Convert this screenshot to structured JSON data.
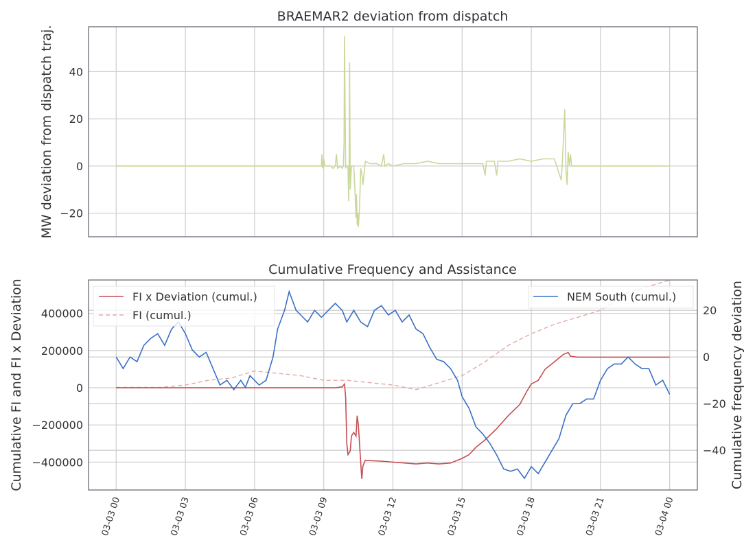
{
  "colors": {
    "deviation": "#cad89a",
    "fi_x_dev": "#c44e52",
    "fi": "#e3a8a6",
    "nem": "#3a70c4"
  },
  "chart_data": [
    {
      "type": "line",
      "title": "BRAEMAR2 deviation from dispatch",
      "xlabel": "",
      "ylabel": "MW deviation from dispatch traj.",
      "x_range": [
        "03-03 00",
        "03-04 00"
      ],
      "xlim_hours": [
        -1.2,
        25.2
      ],
      "ylim": [
        -30,
        59
      ],
      "yticks": [
        -20,
        0,
        20,
        40
      ],
      "ytick_labels": [
        "−20",
        "0",
        "20",
        "40"
      ],
      "grid": true,
      "series": [
        {
          "color_key": "deviation",
          "points": [
            [
              0,
              0
            ],
            [
              8.8,
              0
            ],
            [
              8.9,
              0
            ],
            [
              8.92,
              5
            ],
            [
              8.95,
              -1
            ],
            [
              9.0,
              3
            ],
            [
              9.05,
              0
            ],
            [
              9.3,
              0
            ],
            [
              9.4,
              -1
            ],
            [
              9.5,
              0
            ],
            [
              9.55,
              5
            ],
            [
              9.6,
              -1
            ],
            [
              9.7,
              0
            ],
            [
              9.8,
              -1
            ],
            [
              9.85,
              0
            ],
            [
              9.88,
              10
            ],
            [
              9.9,
              55
            ],
            [
              9.95,
              -1
            ],
            [
              10.0,
              0
            ],
            [
              10.05,
              0
            ],
            [
              10.08,
              -15
            ],
            [
              10.1,
              0
            ],
            [
              10.12,
              44
            ],
            [
              10.15,
              -10
            ],
            [
              10.2,
              0
            ],
            [
              10.3,
              0
            ],
            [
              10.35,
              -10
            ],
            [
              10.4,
              -22
            ],
            [
              10.42,
              -12
            ],
            [
              10.45,
              -25
            ],
            [
              10.48,
              -20
            ],
            [
              10.5,
              -26
            ],
            [
              10.55,
              -18
            ],
            [
              10.6,
              -1
            ],
            [
              10.65,
              -3
            ],
            [
              10.7,
              -8
            ],
            [
              10.75,
              -3
            ],
            [
              10.8,
              2
            ],
            [
              11.0,
              1
            ],
            [
              11.3,
              1
            ],
            [
              11.5,
              0
            ],
            [
              11.6,
              5
            ],
            [
              11.65,
              0
            ],
            [
              11.8,
              1
            ],
            [
              12.0,
              0
            ],
            [
              12.5,
              1
            ],
            [
              13.0,
              1
            ],
            [
              13.5,
              2
            ],
            [
              14.0,
              1
            ],
            [
              14.5,
              1
            ],
            [
              15.0,
              1
            ],
            [
              15.5,
              1
            ],
            [
              15.9,
              1
            ],
            [
              16.0,
              -4
            ],
            [
              16.05,
              2
            ],
            [
              16.4,
              2
            ],
            [
              16.5,
              -4
            ],
            [
              16.55,
              2
            ],
            [
              17.0,
              2
            ],
            [
              17.5,
              3
            ],
            [
              18.0,
              2
            ],
            [
              18.5,
              3
            ],
            [
              19.0,
              3
            ],
            [
              19.2,
              -3
            ],
            [
              19.3,
              -6
            ],
            [
              19.35,
              2
            ],
            [
              19.45,
              24
            ],
            [
              19.5,
              -1
            ],
            [
              19.55,
              -8
            ],
            [
              19.6,
              6
            ],
            [
              19.65,
              0
            ],
            [
              19.7,
              5
            ],
            [
              19.75,
              0
            ],
            [
              20.0,
              0
            ],
            [
              24.0,
              0
            ]
          ]
        }
      ]
    },
    {
      "type": "line",
      "title": "Cumulative Frequency and Assistance",
      "xlabel": "",
      "ylabel": "Cumulative FI and FI x Deviation",
      "ylabel_right": "Cumulative frequency deviation",
      "x_range": [
        "03-03 00",
        "03-04 00"
      ],
      "xlim_hours": [
        -1.2,
        25.2
      ],
      "ylim": [
        -550000,
        580000
      ],
      "ylim_right": [
        -57,
        33
      ],
      "yticks": [
        -400000,
        -200000,
        0,
        200000,
        400000
      ],
      "ytick_labels": [
        "−400000",
        "−200000",
        "0",
        "200000",
        "400000"
      ],
      "yticks_right": [
        -40,
        -20,
        0,
        20
      ],
      "ytick_labels_right": [
        "−40",
        "−20",
        "0",
        "20"
      ],
      "xticks": [
        0,
        3,
        6,
        9,
        12,
        15,
        18,
        21,
        24
      ],
      "xtick_labels": [
        "03-03 00",
        "03-03 03",
        "03-03 06",
        "03-03 09",
        "03-03 12",
        "03-03 15",
        "03-03 18",
        "03-03 21",
        "03-04 00"
      ],
      "grid": true,
      "legend_left_placement": "upper-left",
      "legend_right_placement": "upper-right",
      "series": [
        {
          "name": "FI x Deviation (cumul.)",
          "axis": "left",
          "color_key": "fi_x_dev",
          "dash": "solid",
          "points": [
            [
              0,
              0
            ],
            [
              2,
              0
            ],
            [
              4,
              0
            ],
            [
              6,
              0
            ],
            [
              8,
              0
            ],
            [
              9.0,
              0
            ],
            [
              9.5,
              0
            ],
            [
              9.8,
              5000
            ],
            [
              9.9,
              20000
            ],
            [
              9.95,
              -50000
            ],
            [
              10.0,
              -300000
            ],
            [
              10.05,
              -360000
            ],
            [
              10.1,
              -350000
            ],
            [
              10.15,
              -340000
            ],
            [
              10.2,
              -260000
            ],
            [
              10.3,
              -240000
            ],
            [
              10.4,
              -260000
            ],
            [
              10.45,
              -150000
            ],
            [
              10.5,
              -200000
            ],
            [
              10.6,
              -400000
            ],
            [
              10.65,
              -490000
            ],
            [
              10.7,
              -420000
            ],
            [
              10.8,
              -390000
            ],
            [
              11.0,
              -392000
            ],
            [
              11.5,
              -395000
            ],
            [
              12.0,
              -400000
            ],
            [
              12.5,
              -405000
            ],
            [
              13.0,
              -410000
            ],
            [
              13.5,
              -405000
            ],
            [
              14.0,
              -410000
            ],
            [
              14.5,
              -405000
            ],
            [
              15.0,
              -380000
            ],
            [
              15.3,
              -360000
            ],
            [
              15.6,
              -320000
            ],
            [
              16.0,
              -280000
            ],
            [
              16.5,
              -220000
            ],
            [
              17.0,
              -150000
            ],
            [
              17.5,
              -90000
            ],
            [
              17.8,
              -20000
            ],
            [
              18.0,
              20000
            ],
            [
              18.3,
              40000
            ],
            [
              18.6,
              100000
            ],
            [
              19.0,
              140000
            ],
            [
              19.2,
              160000
            ],
            [
              19.4,
              180000
            ],
            [
              19.6,
              190000
            ],
            [
              19.7,
              170000
            ],
            [
              20.0,
              165000
            ],
            [
              21.0,
              165000
            ],
            [
              22.0,
              165000
            ],
            [
              23.0,
              165000
            ],
            [
              24.0,
              165000
            ]
          ]
        },
        {
          "name": "FI (cumul.)",
          "axis": "right",
          "color_key": "fi",
          "dash": "dashed",
          "points": [
            [
              0,
              -13
            ],
            [
              1,
              -13
            ],
            [
              2,
              -13
            ],
            [
              3,
              -12
            ],
            [
              4,
              -10
            ],
            [
              5,
              -9
            ],
            [
              6,
              -6
            ],
            [
              7,
              -7
            ],
            [
              8,
              -8
            ],
            [
              9,
              -10
            ],
            [
              10,
              -10
            ],
            [
              11,
              -11
            ],
            [
              12,
              -12
            ],
            [
              13,
              -14
            ],
            [
              14,
              -11
            ],
            [
              15,
              -8
            ],
            [
              16,
              -2
            ],
            [
              17,
              5
            ],
            [
              18,
              10
            ],
            [
              19,
              14
            ],
            [
              20,
              17
            ],
            [
              21,
              20
            ],
            [
              21.5,
              23
            ],
            [
              22,
              27
            ],
            [
              23,
              30
            ],
            [
              24,
              33
            ]
          ]
        },
        {
          "name": "NEM South (cumul.)",
          "axis": "right",
          "color_key": "nem",
          "dash": "solid",
          "points": [
            [
              0,
              0
            ],
            [
              0.3,
              -5
            ],
            [
              0.6,
              0
            ],
            [
              0.9,
              -2
            ],
            [
              1.2,
              5
            ],
            [
              1.5,
              8
            ],
            [
              1.8,
              10
            ],
            [
              2.1,
              5
            ],
            [
              2.4,
              12
            ],
            [
              2.7,
              15
            ],
            [
              3.0,
              10
            ],
            [
              3.3,
              3
            ],
            [
              3.6,
              0
            ],
            [
              3.9,
              2
            ],
            [
              4.2,
              -5
            ],
            [
              4.5,
              -12
            ],
            [
              4.8,
              -10
            ],
            [
              5.1,
              -14
            ],
            [
              5.4,
              -10
            ],
            [
              5.6,
              -13
            ],
            [
              5.8,
              -8
            ],
            [
              6.0,
              -10
            ],
            [
              6.2,
              -12
            ],
            [
              6.5,
              -10
            ],
            [
              6.8,
              0
            ],
            [
              7.0,
              12
            ],
            [
              7.3,
              20
            ],
            [
              7.5,
              28
            ],
            [
              7.8,
              20
            ],
            [
              8.0,
              18
            ],
            [
              8.3,
              15
            ],
            [
              8.6,
              20
            ],
            [
              8.9,
              17
            ],
            [
              9.2,
              20
            ],
            [
              9.5,
              23
            ],
            [
              9.8,
              20
            ],
            [
              10.0,
              15
            ],
            [
              10.3,
              20
            ],
            [
              10.6,
              15
            ],
            [
              10.9,
              13
            ],
            [
              11.2,
              20
            ],
            [
              11.5,
              22
            ],
            [
              11.8,
              18
            ],
            [
              12.1,
              20
            ],
            [
              12.4,
              15
            ],
            [
              12.7,
              18
            ],
            [
              13.0,
              12
            ],
            [
              13.3,
              10
            ],
            [
              13.6,
              4
            ],
            [
              13.9,
              -1
            ],
            [
              14.2,
              -2
            ],
            [
              14.5,
              -5
            ],
            [
              14.8,
              -10
            ],
            [
              15.0,
              -17
            ],
            [
              15.3,
              -22
            ],
            [
              15.6,
              -30
            ],
            [
              15.9,
              -33
            ],
            [
              16.2,
              -37
            ],
            [
              16.5,
              -42
            ],
            [
              16.8,
              -48
            ],
            [
              17.1,
              -49
            ],
            [
              17.4,
              -48
            ],
            [
              17.7,
              -52
            ],
            [
              18.0,
              -47
            ],
            [
              18.3,
              -50
            ],
            [
              18.6,
              -45
            ],
            [
              18.9,
              -40
            ],
            [
              19.2,
              -35
            ],
            [
              19.5,
              -25
            ],
            [
              19.8,
              -20
            ],
            [
              20.1,
              -20
            ],
            [
              20.4,
              -18
            ],
            [
              20.7,
              -18
            ],
            [
              21.0,
              -10
            ],
            [
              21.3,
              -5
            ],
            [
              21.6,
              -3
            ],
            [
              21.9,
              -3
            ],
            [
              22.2,
              0
            ],
            [
              22.5,
              -3
            ],
            [
              22.8,
              -5
            ],
            [
              23.1,
              -5
            ],
            [
              23.4,
              -12
            ],
            [
              23.7,
              -10
            ],
            [
              24.0,
              -16
            ]
          ]
        }
      ]
    }
  ]
}
